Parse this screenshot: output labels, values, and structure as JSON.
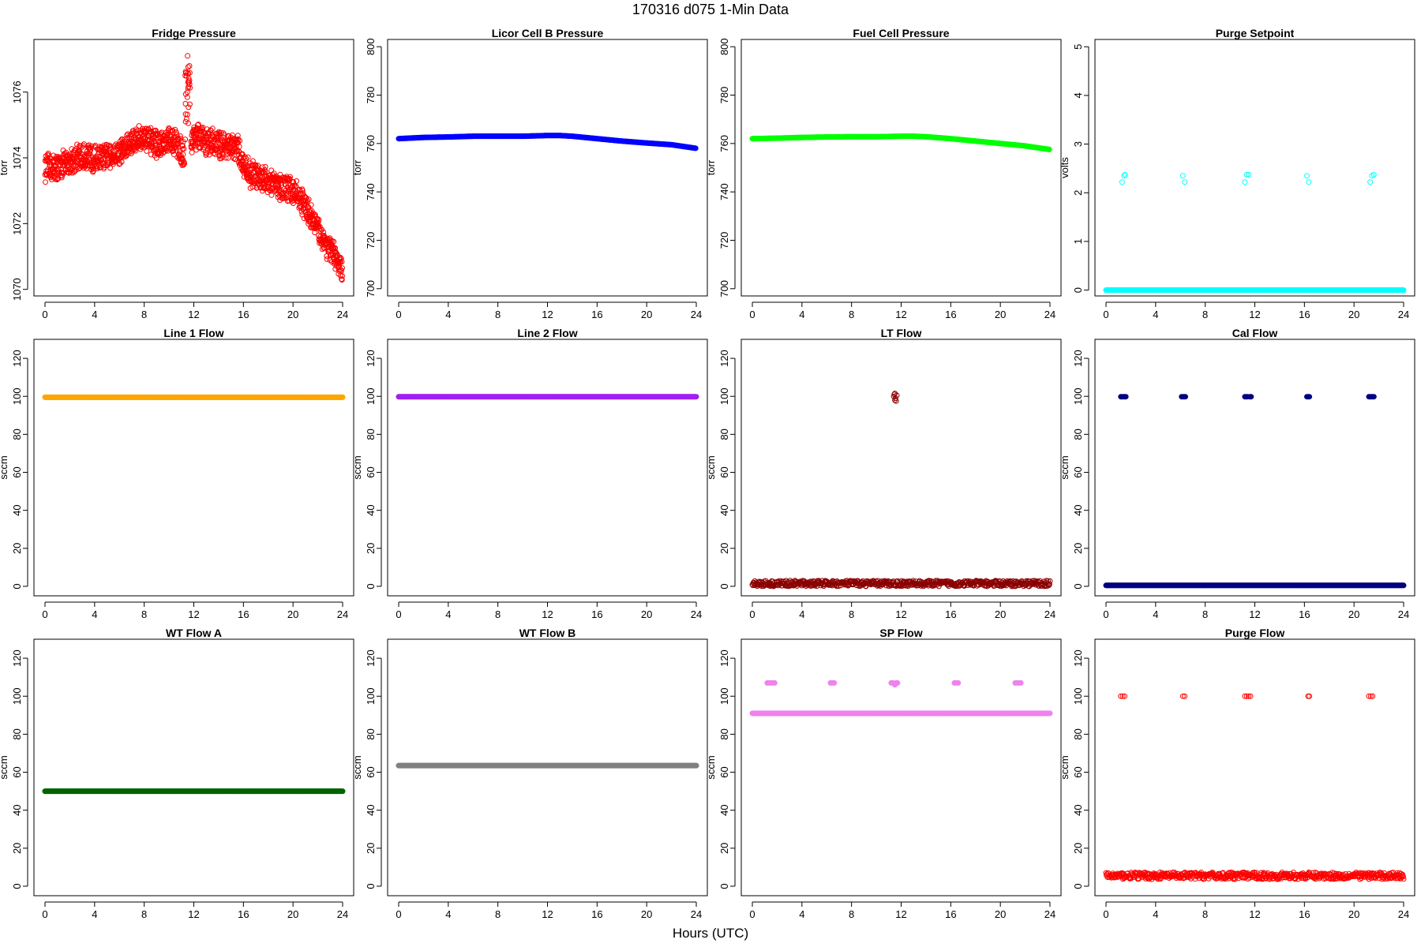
{
  "figure": {
    "title": "170316   d075   1-Min Data",
    "xlabel": "Hours (UTC)"
  },
  "chart_data": [
    {
      "type": "scatter",
      "title": "Fridge Pressure",
      "ylabel": "torr",
      "xlim": [
        0,
        24
      ],
      "ylim": [
        1069.8,
        1077.6
      ],
      "xticks": [
        0,
        4,
        8,
        12,
        16,
        20,
        24
      ],
      "yticks": [
        1070,
        1072,
        1074,
        1076
      ],
      "color": "#ff0000",
      "filled": false,
      "series": [
        {
          "x": [
            0,
            0.5,
            1,
            1.5,
            2,
            2.5,
            3,
            3.5,
            4,
            4.5,
            5,
            5.5,
            6,
            6.5,
            7,
            7.5,
            8,
            8.5,
            9,
            9.5,
            10,
            10.5,
            11,
            11.5,
            12,
            12.5,
            13,
            13.5,
            14,
            14.5,
            15,
            15.5,
            16,
            16.5,
            17,
            17.5,
            18,
            18.5,
            19,
            19.5,
            20,
            20.5,
            21,
            21.5,
            22,
            22.5,
            23,
            23.5,
            24
          ],
          "y": [
            1073.7,
            1073.7,
            1073.7,
            1073.8,
            1073.9,
            1074.0,
            1074.0,
            1074.0,
            1074.0,
            1074.0,
            1074.0,
            1074.1,
            1074.2,
            1074.3,
            1074.5,
            1074.6,
            1074.6,
            1074.5,
            1074.4,
            1074.4,
            1074.5,
            1074.5,
            1074.2,
            1074.0,
            1074.7,
            1074.6,
            1074.5,
            1074.5,
            1074.4,
            1074.4,
            1074.3,
            1074.3,
            1073.8,
            1073.5,
            1073.5,
            1073.4,
            1073.3,
            1073.2,
            1073.1,
            1073.1,
            1073.0,
            1072.8,
            1072.5,
            1072.2,
            1071.8,
            1071.5,
            1071.2,
            1070.9,
            1070.5
          ]
        }
      ],
      "spike": {
        "x": [
          11.3,
          11.7
        ],
        "y": [
          1075.8,
          1077.1
        ]
      },
      "noise": 0.35
    },
    {
      "type": "scatter",
      "title": "Licor Cell B Pressure",
      "ylabel": "torr",
      "xlim": [
        0,
        24
      ],
      "ylim": [
        697,
        803
      ],
      "xticks": [
        0,
        4,
        8,
        12,
        16,
        20,
        24
      ],
      "yticks": [
        700,
        720,
        740,
        760,
        780,
        800
      ],
      "color": "#0000ff",
      "filled": true,
      "series": [
        {
          "x": [
            0,
            2,
            4,
            6,
            8,
            10,
            12,
            13,
            14,
            16,
            18,
            20,
            22,
            24
          ],
          "y": [
            762,
            762.5,
            762.7,
            763,
            763,
            763,
            763.3,
            763.3,
            763,
            762,
            761,
            760.2,
            759.5,
            758
          ]
        }
      ]
    },
    {
      "type": "scatter",
      "title": "Fuel Cell Pressure",
      "ylabel": "torr",
      "xlim": [
        0,
        24
      ],
      "ylim": [
        697,
        803
      ],
      "xticks": [
        0,
        4,
        8,
        12,
        16,
        20,
        24
      ],
      "yticks": [
        700,
        720,
        740,
        760,
        780,
        800
      ],
      "color": "#00ff00",
      "filled": true,
      "series": [
        {
          "x": [
            0,
            2,
            4,
            6,
            8,
            10,
            12,
            13,
            14,
            16,
            18,
            20,
            22,
            24
          ],
          "y": [
            762,
            762.2,
            762.5,
            762.7,
            762.8,
            762.8,
            763,
            763,
            762.8,
            762,
            761,
            760,
            759,
            757.5
          ]
        }
      ]
    },
    {
      "type": "scatter",
      "title": "Purge Setpoint",
      "ylabel": "volts",
      "xlim": [
        0,
        24
      ],
      "ylim": [
        -0.12,
        5.15
      ],
      "xticks": [
        0,
        4,
        8,
        12,
        16,
        20,
        24
      ],
      "yticks": [
        0,
        1,
        2,
        3,
        4,
        5
      ],
      "color": "#00ffff",
      "filled": false,
      "series": [
        {
          "x": [
            0,
            24
          ],
          "y": [
            0,
            0
          ],
          "band": true
        },
        {
          "x": [
            1.3,
            1.45,
            1.55,
            6.2,
            6.35,
            11.2,
            11.35,
            11.5,
            16.2,
            16.35,
            21.3,
            21.45,
            21.6
          ],
          "y": [
            2.22,
            2.35,
            2.37,
            2.35,
            2.22,
            2.22,
            2.37,
            2.37,
            2.35,
            2.22,
            2.22,
            2.35,
            2.37
          ]
        }
      ]
    },
    {
      "type": "scatter",
      "title": "Line 1 Flow",
      "ylabel": "sccm",
      "xlim": [
        0,
        24
      ],
      "ylim": [
        -5,
        130
      ],
      "xticks": [
        0,
        4,
        8,
        12,
        16,
        20,
        24
      ],
      "yticks": [
        0,
        20,
        40,
        60,
        80,
        100,
        120
      ],
      "color": "#ffa500",
      "filled": true,
      "series": [
        {
          "x": [
            0,
            24
          ],
          "y": [
            99.5,
            99.5
          ],
          "band": true
        }
      ]
    },
    {
      "type": "scatter",
      "title": "Line 2 Flow",
      "ylabel": "sccm",
      "xlim": [
        0,
        24
      ],
      "ylim": [
        -5,
        130
      ],
      "xticks": [
        0,
        4,
        8,
        12,
        16,
        20,
        24
      ],
      "yticks": [
        0,
        20,
        40,
        60,
        80,
        100,
        120
      ],
      "color": "#a020f0",
      "filled": true,
      "series": [
        {
          "x": [
            0,
            24
          ],
          "y": [
            99.8,
            99.8
          ],
          "band": true
        }
      ]
    },
    {
      "type": "scatter",
      "title": "LT Flow",
      "ylabel": "sccm",
      "xlim": [
        0,
        24
      ],
      "ylim": [
        -5,
        130
      ],
      "xticks": [
        0,
        4,
        8,
        12,
        16,
        20,
        24
      ],
      "yticks": [
        0,
        20,
        40,
        60,
        80,
        100,
        120
      ],
      "color": "#8b0000",
      "filled": false,
      "series": [
        {
          "x": [
            0,
            24
          ],
          "y": [
            1.5,
            1.5
          ],
          "band": true,
          "noise": 1.5
        },
        {
          "x": [
            11.4,
            11.5,
            11.55,
            11.6,
            11.65,
            11.5,
            11.45
          ],
          "y": [
            100,
            101.5,
            99,
            97.5,
            100.5,
            98,
            101
          ]
        }
      ]
    },
    {
      "type": "scatter",
      "title": "Cal Flow",
      "ylabel": "sccm",
      "xlim": [
        0,
        24
      ],
      "ylim": [
        -5,
        130
      ],
      "xticks": [
        0,
        4,
        8,
        12,
        16,
        20,
        24
      ],
      "yticks": [
        0,
        20,
        40,
        60,
        80,
        100,
        120
      ],
      "color": "#000080",
      "filled": true,
      "series": [
        {
          "x": [
            0,
            24
          ],
          "y": [
            0.5,
            0.5
          ],
          "band": true
        },
        {
          "x": [
            1.2,
            1.3,
            1.4,
            1.5,
            1.6,
            6.1,
            6.2,
            6.3,
            6.4,
            11.2,
            11.3,
            11.4,
            11.6,
            11.7,
            16.2,
            16.3,
            16.4,
            21.2,
            21.3,
            21.4,
            21.5,
            21.6
          ],
          "y": [
            99.8,
            99.8,
            99.8,
            99.8,
            99.8,
            99.8,
            99.8,
            99.8,
            99.8,
            99.8,
            99.8,
            99.8,
            99.8,
            99.8,
            99.8,
            99.8,
            99.8,
            99.8,
            99.8,
            99.8,
            99.8,
            99.8
          ]
        }
      ]
    },
    {
      "type": "scatter",
      "title": "WT Flow A",
      "ylabel": "sccm",
      "xlim": [
        0,
        24
      ],
      "ylim": [
        -5,
        130
      ],
      "xticks": [
        0,
        4,
        8,
        12,
        16,
        20,
        24
      ],
      "yticks": [
        0,
        20,
        40,
        60,
        80,
        100,
        120
      ],
      "color": "#006400",
      "filled": true,
      "series": [
        {
          "x": [
            0,
            24
          ],
          "y": [
            50,
            50
          ],
          "band": true
        }
      ]
    },
    {
      "type": "scatter",
      "title": "WT Flow B",
      "ylabel": "sccm",
      "xlim": [
        0,
        24
      ],
      "ylim": [
        -5,
        130
      ],
      "xticks": [
        0,
        4,
        8,
        12,
        16,
        20,
        24
      ],
      "yticks": [
        0,
        20,
        40,
        60,
        80,
        100,
        120
      ],
      "color": "#808080",
      "filled": true,
      "series": [
        {
          "x": [
            0,
            24
          ],
          "y": [
            63.5,
            63.5
          ],
          "band": true
        }
      ]
    },
    {
      "type": "scatter",
      "title": "SP Flow",
      "ylabel": "sccm",
      "xlim": [
        0,
        24
      ],
      "ylim": [
        -5,
        130
      ],
      "xticks": [
        0,
        4,
        8,
        12,
        16,
        20,
        24
      ],
      "yticks": [
        0,
        20,
        40,
        60,
        80,
        100,
        120
      ],
      "color": "#ee82ee",
      "filled": true,
      "series": [
        {
          "x": [
            0,
            24
          ],
          "y": [
            91,
            91
          ],
          "band": true
        },
        {
          "x": [
            1.2,
            1.35,
            1.5,
            1.65,
            1.8,
            6.3,
            6.45,
            6.6,
            11.2,
            11.35,
            11.5,
            11.6,
            11.7,
            16.3,
            16.45,
            16.6,
            21.2,
            21.35,
            21.5,
            21.65
          ],
          "y": [
            107,
            107,
            107,
            107,
            107,
            107,
            107,
            107,
            107,
            107,
            106,
            107,
            107,
            107,
            107,
            107,
            107,
            107,
            107,
            107
          ]
        }
      ]
    },
    {
      "type": "scatter",
      "title": "Purge Flow",
      "ylabel": "sccm",
      "xlim": [
        0,
        24
      ],
      "ylim": [
        -5,
        130
      ],
      "xticks": [
        0,
        4,
        8,
        12,
        16,
        20,
        24
      ],
      "yticks": [
        0,
        20,
        40,
        60,
        80,
        100,
        120
      ],
      "color": "#ff0000",
      "filled": false,
      "series": [
        {
          "x": [
            0,
            24
          ],
          "y": [
            5.5,
            5.5
          ],
          "band": true,
          "noise": 1.8
        },
        {
          "x": [
            1.2,
            1.35,
            1.5,
            6.2,
            6.35,
            11.2,
            11.35,
            11.5,
            11.65,
            16.3,
            16.4,
            21.2,
            21.35,
            21.5
          ],
          "y": [
            100,
            100,
            100,
            100,
            100,
            100,
            100,
            100,
            100,
            100,
            100,
            100,
            100,
            100
          ]
        }
      ]
    }
  ]
}
